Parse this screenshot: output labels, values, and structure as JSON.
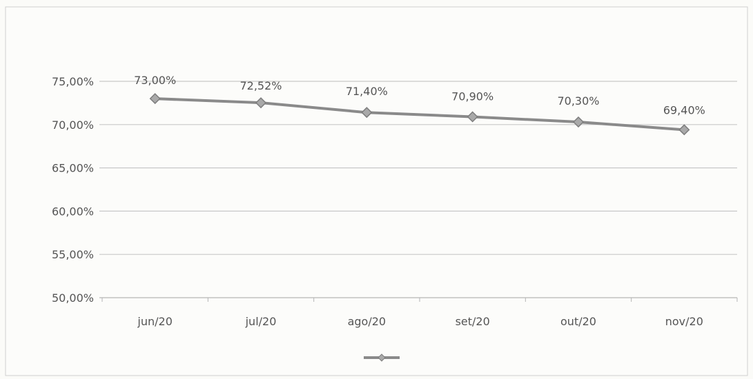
{
  "chart_data": {
    "type": "line",
    "categories": [
      "jun/20",
      "jul/20",
      "ago/20",
      "set/20",
      "out/20",
      "nov/20"
    ],
    "series": [
      {
        "name": "",
        "values": [
          73.0,
          72.52,
          71.4,
          70.9,
          70.3,
          69.4
        ],
        "color": "#8a8a8a"
      }
    ],
    "data_labels": [
      "73,00%",
      "72,52%",
      "71,40%",
      "70,90%",
      "70,30%",
      "69,40%"
    ],
    "ylim": [
      50,
      75
    ],
    "yticks": [
      50,
      55,
      60,
      65,
      70,
      75
    ],
    "ytick_labels": [
      "50,00%",
      "55,00%",
      "60,00%",
      "65,00%",
      "70,00%",
      "75,00%"
    ],
    "grid": true,
    "legend": "bottom-center",
    "title": "",
    "xlabel": "",
    "ylabel": ""
  }
}
